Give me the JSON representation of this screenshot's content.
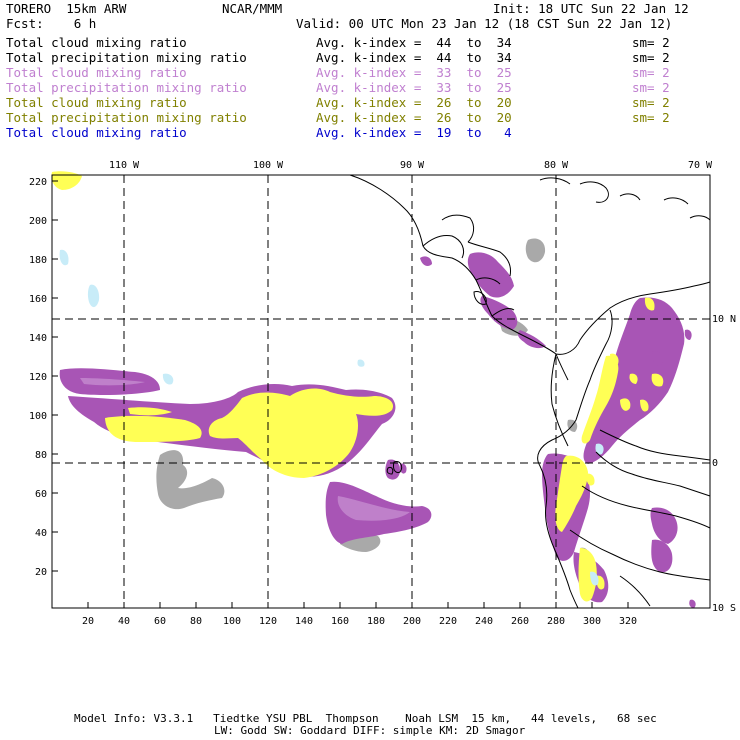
{
  "header": {
    "model": "TORERO  15km ARW",
    "org": "NCAR/MMM",
    "init": "Init: 18 UTC Sun 22 Jan 12",
    "fcst": "Fcst:    6 h",
    "valid": "Valid: 00 UTC Mon 23 Jan 12 (18 CST Sun 22 Jan 12)"
  },
  "legend": [
    {
      "field": "Total cloud mixing ratio",
      "kindex": "Avg. k-index =  44  to  34",
      "sm": "sm= 2",
      "color": "#000000"
    },
    {
      "field": "Total precipitation mixing ratio",
      "kindex": "Avg. k-index =  44  to  34",
      "sm": "sm= 2",
      "color": "#000000"
    },
    {
      "field": "Total cloud mixing ratio",
      "kindex": "Avg. k-index =  33  to  25",
      "sm": "sm= 2",
      "color": "#c080d0"
    },
    {
      "field": "Total precipitation mixing ratio",
      "kindex": "Avg. k-index =  33  to  25",
      "sm": "sm= 2",
      "color": "#c080d0"
    },
    {
      "field": "Total cloud mixing ratio",
      "kindex": "Avg. k-index =  26  to  20",
      "sm": "sm= 2",
      "color": "#808000"
    },
    {
      "field": "Total precipitation mixing ratio",
      "kindex": "Avg. k-index =  26  to  20",
      "sm": "sm= 2",
      "color": "#808000"
    },
    {
      "field": "Total cloud mixing ratio",
      "kindex": "Avg. k-index =  19  to   4",
      "sm": "",
      "color": "#0000cc"
    }
  ],
  "axes": {
    "lon_labels": [
      "110 W",
      "100 W",
      "90 W",
      "80 W",
      "70 W"
    ],
    "lat_labels": [
      "10 N",
      "0",
      "10 S"
    ],
    "x_ticks": [
      "20",
      "40",
      "60",
      "80",
      "100",
      "120",
      "140",
      "160",
      "180",
      "200",
      "220",
      "240",
      "260",
      "280",
      "300",
      "320"
    ],
    "y_ticks": [
      "220",
      "200",
      "180",
      "160",
      "140",
      "120",
      "100",
      "80",
      "60",
      "40",
      "20"
    ]
  },
  "colors": {
    "cloud": "#a855b5",
    "precip": "#ffff55",
    "gray": "#a9a9a9",
    "lightblue": "#c8ecf8"
  },
  "footer": {
    "line1": "Model Info: V3.3.1   Tiedtke YSU PBL  Thompson    Noah LSM  15 km,   44 levels,   68 sec",
    "line2": "LW: Godd SW: Goddard DIFF: simple KM: 2D Smagor"
  }
}
